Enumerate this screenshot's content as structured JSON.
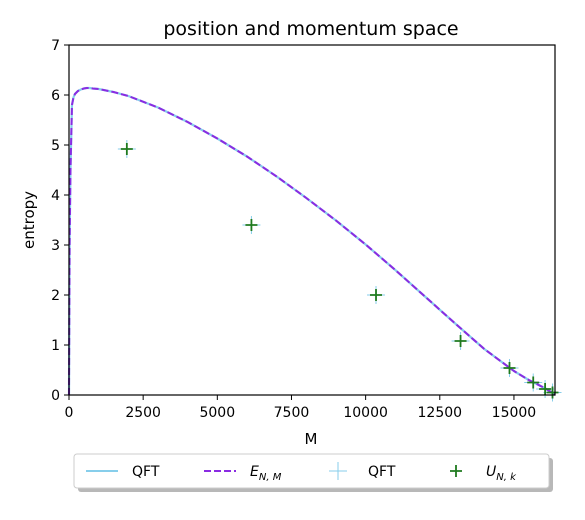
{
  "chart_data": {
    "type": "line",
    "title": "position and momentum space",
    "xlabel": "M",
    "ylabel": "entropy",
    "xlim": [
      0,
      16384
    ],
    "ylim": [
      0,
      7
    ],
    "xticks": [
      0,
      2500,
      5000,
      7500,
      10000,
      12500,
      15000
    ],
    "xtick_labels": [
      "0",
      "2500",
      "5000",
      "7500",
      "10000",
      "12500",
      "15000"
    ],
    "yticks": [
      0,
      1,
      2,
      3,
      4,
      5,
      6,
      7
    ],
    "ytick_labels": [
      "0",
      "1",
      "2",
      "3",
      "4",
      "5",
      "6",
      "7"
    ],
    "grid": false,
    "legend_position": "below",
    "series": [
      {
        "name": "QFT",
        "kind": "line",
        "style": "solid",
        "color": "#87ceeb",
        "x": [
          0,
          20,
          50,
          100,
          150,
          200,
          300,
          400,
          500,
          600,
          700,
          800,
          1000,
          1500,
          2000,
          3000,
          4000,
          5000,
          6000,
          7000,
          8000,
          9000,
          10000,
          11000,
          12000,
          13000,
          14000,
          15000,
          15500,
          16000,
          16200,
          16384
        ],
        "y": [
          0,
          3.0,
          4.5,
          5.8,
          5.95,
          6.02,
          6.08,
          6.11,
          6.13,
          6.14,
          6.14,
          6.13,
          6.12,
          6.06,
          5.98,
          5.75,
          5.46,
          5.13,
          4.77,
          4.37,
          3.94,
          3.49,
          3.01,
          2.5,
          1.97,
          1.44,
          0.92,
          0.48,
          0.3,
          0.15,
          0.08,
          0
        ]
      },
      {
        "name": "E_{N,M}",
        "kind": "line",
        "style": "dashed",
        "color": "#8a2be2",
        "x": [
          0,
          20,
          50,
          100,
          150,
          200,
          300,
          400,
          500,
          600,
          700,
          800,
          1000,
          1500,
          2000,
          3000,
          4000,
          5000,
          6000,
          7000,
          8000,
          9000,
          10000,
          11000,
          12000,
          13000,
          14000,
          15000,
          15500,
          16000,
          16200,
          16384
        ],
        "y": [
          0,
          3.0,
          4.5,
          5.8,
          5.95,
          6.02,
          6.08,
          6.11,
          6.13,
          6.14,
          6.14,
          6.13,
          6.12,
          6.06,
          5.98,
          5.75,
          5.46,
          5.13,
          4.77,
          4.37,
          3.94,
          3.49,
          3.01,
          2.5,
          1.97,
          1.44,
          0.92,
          0.48,
          0.3,
          0.15,
          0.08,
          0
        ]
      },
      {
        "name": "QFT",
        "kind": "scatter",
        "marker": "thin-plus",
        "color": "#87ceeb",
        "x": [
          1950,
          6150,
          10350,
          13200,
          14850,
          15650,
          16050,
          16300
        ],
        "y": [
          4.92,
          3.4,
          2.0,
          1.08,
          0.54,
          0.25,
          0.12,
          0.05
        ]
      },
      {
        "name": "U_{N,k}",
        "kind": "scatter",
        "marker": "plus",
        "color": "#1f7a1f",
        "x": [
          1950,
          6150,
          10350,
          13200,
          14850,
          15650,
          16050,
          16300
        ],
        "y": [
          4.92,
          3.4,
          2.0,
          1.08,
          0.54,
          0.25,
          0.12,
          0.05
        ]
      }
    ],
    "legend": [
      {
        "label": "QFT",
        "kind": "line-solid",
        "color": "#87ceeb"
      },
      {
        "label_base": "E",
        "label_sub": "N, M",
        "kind": "line-dashed",
        "color": "#8a2be2"
      },
      {
        "label": "QFT",
        "kind": "marker-thin-plus",
        "color": "#87ceeb"
      },
      {
        "label_base": "U",
        "label_sub": "N, k",
        "kind": "marker-plus",
        "color": "#1f7a1f"
      }
    ]
  }
}
